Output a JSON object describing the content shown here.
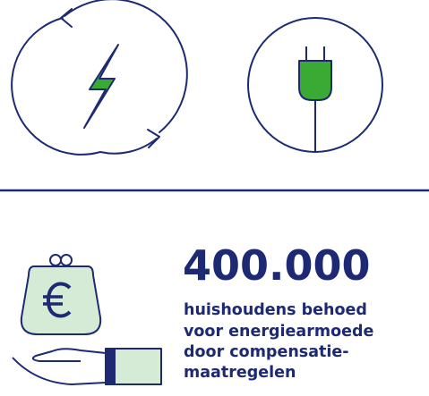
{
  "headline": "400.000",
  "description": [
    "huishoudens behoed",
    "voor energiearmoede",
    "door compensatie-",
    "maatregelen"
  ]
}
